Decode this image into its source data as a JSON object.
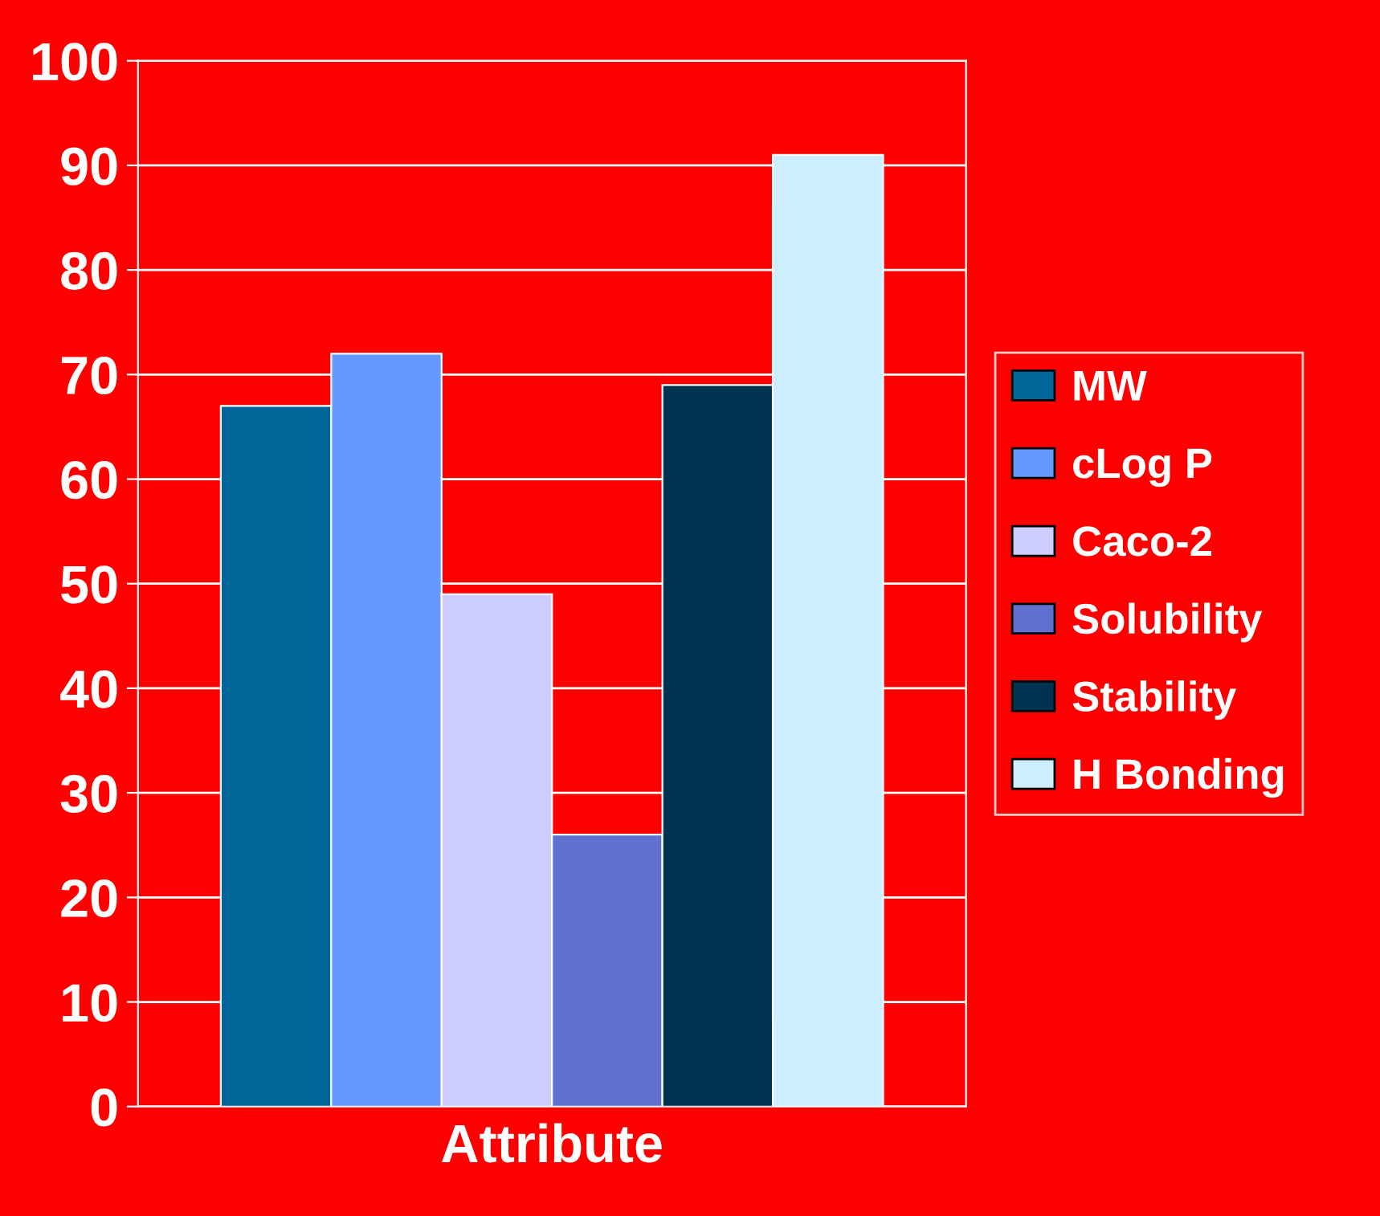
{
  "chart_data": {
    "type": "bar",
    "xlabel": "Attribute",
    "categories": [
      null
    ],
    "series": [
      {
        "name": "MW",
        "color": "#006699",
        "values": [
          67
        ]
      },
      {
        "name": "cLog P",
        "color": "#6699ff",
        "values": [
          72
        ]
      },
      {
        "name": "Caco-2",
        "color": "#ccccff",
        "values": [
          49
        ]
      },
      {
        "name": "Solubility",
        "color": "#6070d0",
        "values": [
          26
        ]
      },
      {
        "name": "Stability",
        "color": "#003350",
        "values": [
          69
        ]
      },
      {
        "name": "H Bonding",
        "color": "#cceeff",
        "values": [
          91
        ]
      }
    ],
    "ylim": [
      0,
      100
    ],
    "yticks": [
      0,
      10,
      20,
      30,
      40,
      50,
      60,
      70,
      80,
      90,
      100
    ],
    "grid": "y",
    "legend": "right"
  }
}
